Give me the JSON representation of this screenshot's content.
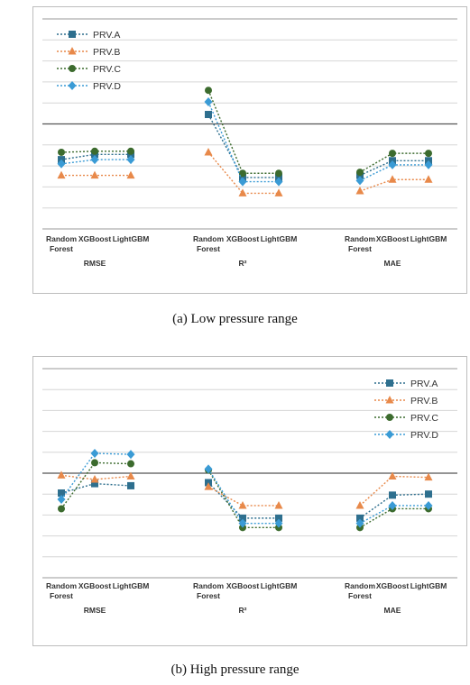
{
  "figure": {
    "caption_a": "(a) Low pressure range",
    "caption_b": "(b) High pressure range"
  },
  "chart_data": [
    {
      "type": "line",
      "ylim": [
        0,
        1
      ],
      "y_ticks": [
        "0",
        "0.5",
        "1"
      ],
      "grid": true,
      "legend_position": "top-left",
      "groups": [
        {
          "label": "RMSE",
          "categories": [
            "Random\nForest",
            "XGBoost",
            "LightGBM"
          ]
        },
        {
          "label": "R²",
          "categories": [
            "Random\nForest",
            "XGBoost",
            "LightGBM"
          ]
        },
        {
          "label": "MAE",
          "categories": [
            "Random\nForest",
            "XGBoost",
            "LightGBM"
          ]
        }
      ],
      "series": [
        {
          "name": "PRV.A",
          "color": "#2e6f8e",
          "marker": "square",
          "values": [
            [
              0.33,
              0.355,
              0.355
            ],
            [
              0.545,
              0.245,
              0.245
            ],
            [
              0.255,
              0.325,
              0.325
            ]
          ]
        },
        {
          "name": "PRV.B",
          "color": "#e8894a",
          "marker": "triangle",
          "values": [
            [
              0.255,
              0.255,
              0.255
            ],
            [
              0.365,
              0.17,
              0.17
            ],
            [
              0.18,
              0.235,
              0.235
            ]
          ]
        },
        {
          "name": "PRV.C",
          "color": "#3c6b2e",
          "marker": "circle",
          "values": [
            [
              0.365,
              0.37,
              0.37
            ],
            [
              0.66,
              0.265,
              0.265
            ],
            [
              0.27,
              0.36,
              0.36
            ]
          ]
        },
        {
          "name": "PRV.D",
          "color": "#3a9bd5",
          "marker": "diamond",
          "values": [
            [
              0.31,
              0.33,
              0.33
            ],
            [
              0.605,
              0.225,
              0.225
            ],
            [
              0.23,
              0.305,
              0.305
            ]
          ]
        }
      ]
    },
    {
      "type": "line",
      "ylim": [
        0,
        1
      ],
      "y_ticks": [
        "0",
        "0.5",
        "1"
      ],
      "grid": true,
      "legend_position": "top-right",
      "groups": [
        {
          "label": "RMSE",
          "categories": [
            "Random\nForest",
            "XGBoost",
            "LightGBM"
          ]
        },
        {
          "label": "R²",
          "categories": [
            "Random\nForest",
            "XGBoost",
            "LightGBM"
          ]
        },
        {
          "label": "MAE",
          "categories": [
            "Random\nForest",
            "XGBoost",
            "LightGBM"
          ]
        }
      ],
      "series": [
        {
          "name": "PRV.A",
          "color": "#2e6f8e",
          "marker": "square",
          "values": [
            [
              0.405,
              0.45,
              0.44
            ],
            [
              0.455,
              0.285,
              0.285
            ],
            [
              0.285,
              0.395,
              0.4
            ]
          ]
        },
        {
          "name": "PRV.B",
          "color": "#e8894a",
          "marker": "triangle",
          "values": [
            [
              0.49,
              0.47,
              0.485
            ],
            [
              0.435,
              0.345,
              0.345
            ],
            [
              0.345,
              0.485,
              0.48
            ]
          ]
        },
        {
          "name": "PRV.C",
          "color": "#3c6b2e",
          "marker": "circle",
          "values": [
            [
              0.33,
              0.55,
              0.545
            ],
            [
              0.515,
              0.24,
              0.24
            ],
            [
              0.24,
              0.33,
              0.33
            ]
          ]
        },
        {
          "name": "PRV.D",
          "color": "#3a9bd5",
          "marker": "diamond",
          "values": [
            [
              0.375,
              0.595,
              0.59
            ],
            [
              0.52,
              0.26,
              0.26
            ],
            [
              0.26,
              0.345,
              0.345
            ]
          ]
        }
      ]
    }
  ]
}
